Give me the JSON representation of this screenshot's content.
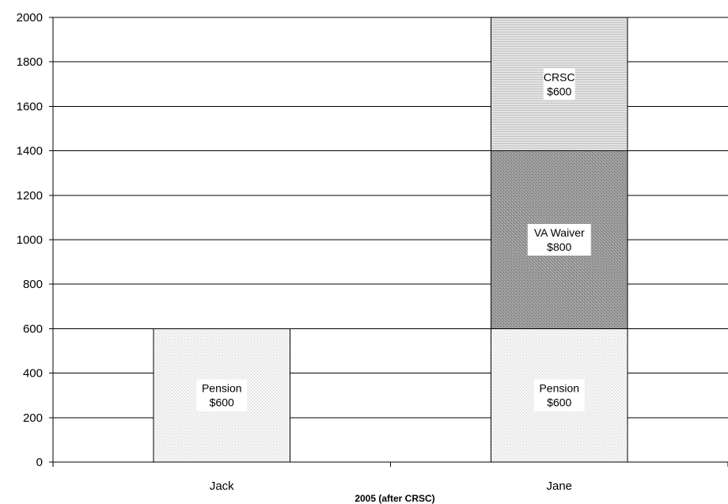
{
  "chart_data": {
    "type": "bar",
    "stacked": true,
    "title": "",
    "xlabel": "2005 (after CRSC)",
    "ylabel": "",
    "ylim": [
      0,
      2000
    ],
    "yticks": [
      0,
      200,
      400,
      600,
      800,
      1000,
      1200,
      1400,
      1600,
      1800,
      2000
    ],
    "grid": true,
    "categories": [
      "Jack",
      "Jane"
    ],
    "segments": [
      {
        "category": "Jack",
        "value": 600,
        "label": [
          "Pension",
          "$600"
        ],
        "color": "#f0f0f0",
        "pattern": "fine-dots"
      },
      {
        "category": "Jane",
        "value": 600,
        "label": [
          "Pension",
          "$600"
        ],
        "color": "#f0f0f0",
        "pattern": "fine-dots"
      },
      {
        "category": "Jane",
        "value": 800,
        "label": [
          "VA Waiver",
          "$800"
        ],
        "color": "#8f8f8f",
        "pattern": "dense-dots"
      },
      {
        "category": "Jane",
        "value": 600,
        "label": [
          "CRSC",
          "$600"
        ],
        "color": "#d8d8d8",
        "pattern": "horizontal-lines"
      }
    ]
  }
}
